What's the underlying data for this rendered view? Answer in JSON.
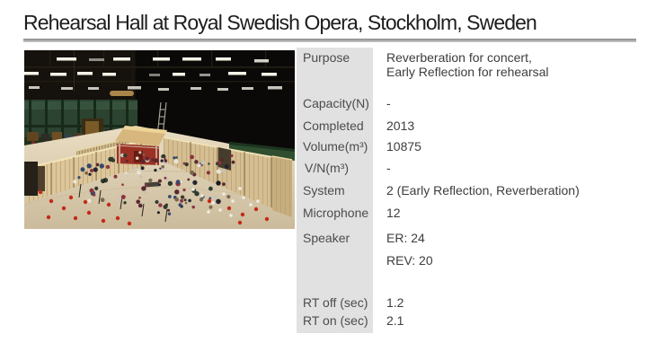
{
  "title": "Rehearsal Hall at Royal Swedish Opera, Stockholm, Sweden",
  "photo": {
    "description": "Aerial view of an orchestra rehearsing inside the hall: dark rigging ceiling with fluorescent light strips, green walls, black stage curtain, wooden acoustic screens arranged in an arc, a red control booth, light wooden floor with musicians, red chairs and music stands",
    "people_colors": [
      "#23242e",
      "#171a22",
      "#5a2730",
      "#e9e4d6",
      "#36486b",
      "#7a6850",
      "#8e3340",
      "#2f3a2e",
      "#c8c2b2"
    ],
    "chair_color": "#c42a18",
    "paper_color": "#efece2"
  },
  "table": {
    "rows": [
      {
        "label": "Purpose",
        "value": "Reverberation for concert,\nEarly Reflection for rehearsal"
      },
      {
        "label": "Capacity(N)",
        "value": "-"
      },
      {
        "label": "Completed",
        "value": "2013"
      },
      {
        "label": "Volume(m³)",
        "value": "10875"
      },
      {
        "label": "V/N(m³)",
        "value": "-"
      },
      {
        "label": "System",
        "value": "2 (Early Reflection, Reverberation)"
      },
      {
        "label": "Microphone",
        "value": "12"
      },
      {
        "label": "Speaker",
        "value": "ER: 24",
        "value2": "REV: 20"
      },
      {
        "label": "RT off (sec)",
        "value": "1.2"
      },
      {
        "label": "RT on (sec)",
        "value": "2.1"
      }
    ]
  }
}
